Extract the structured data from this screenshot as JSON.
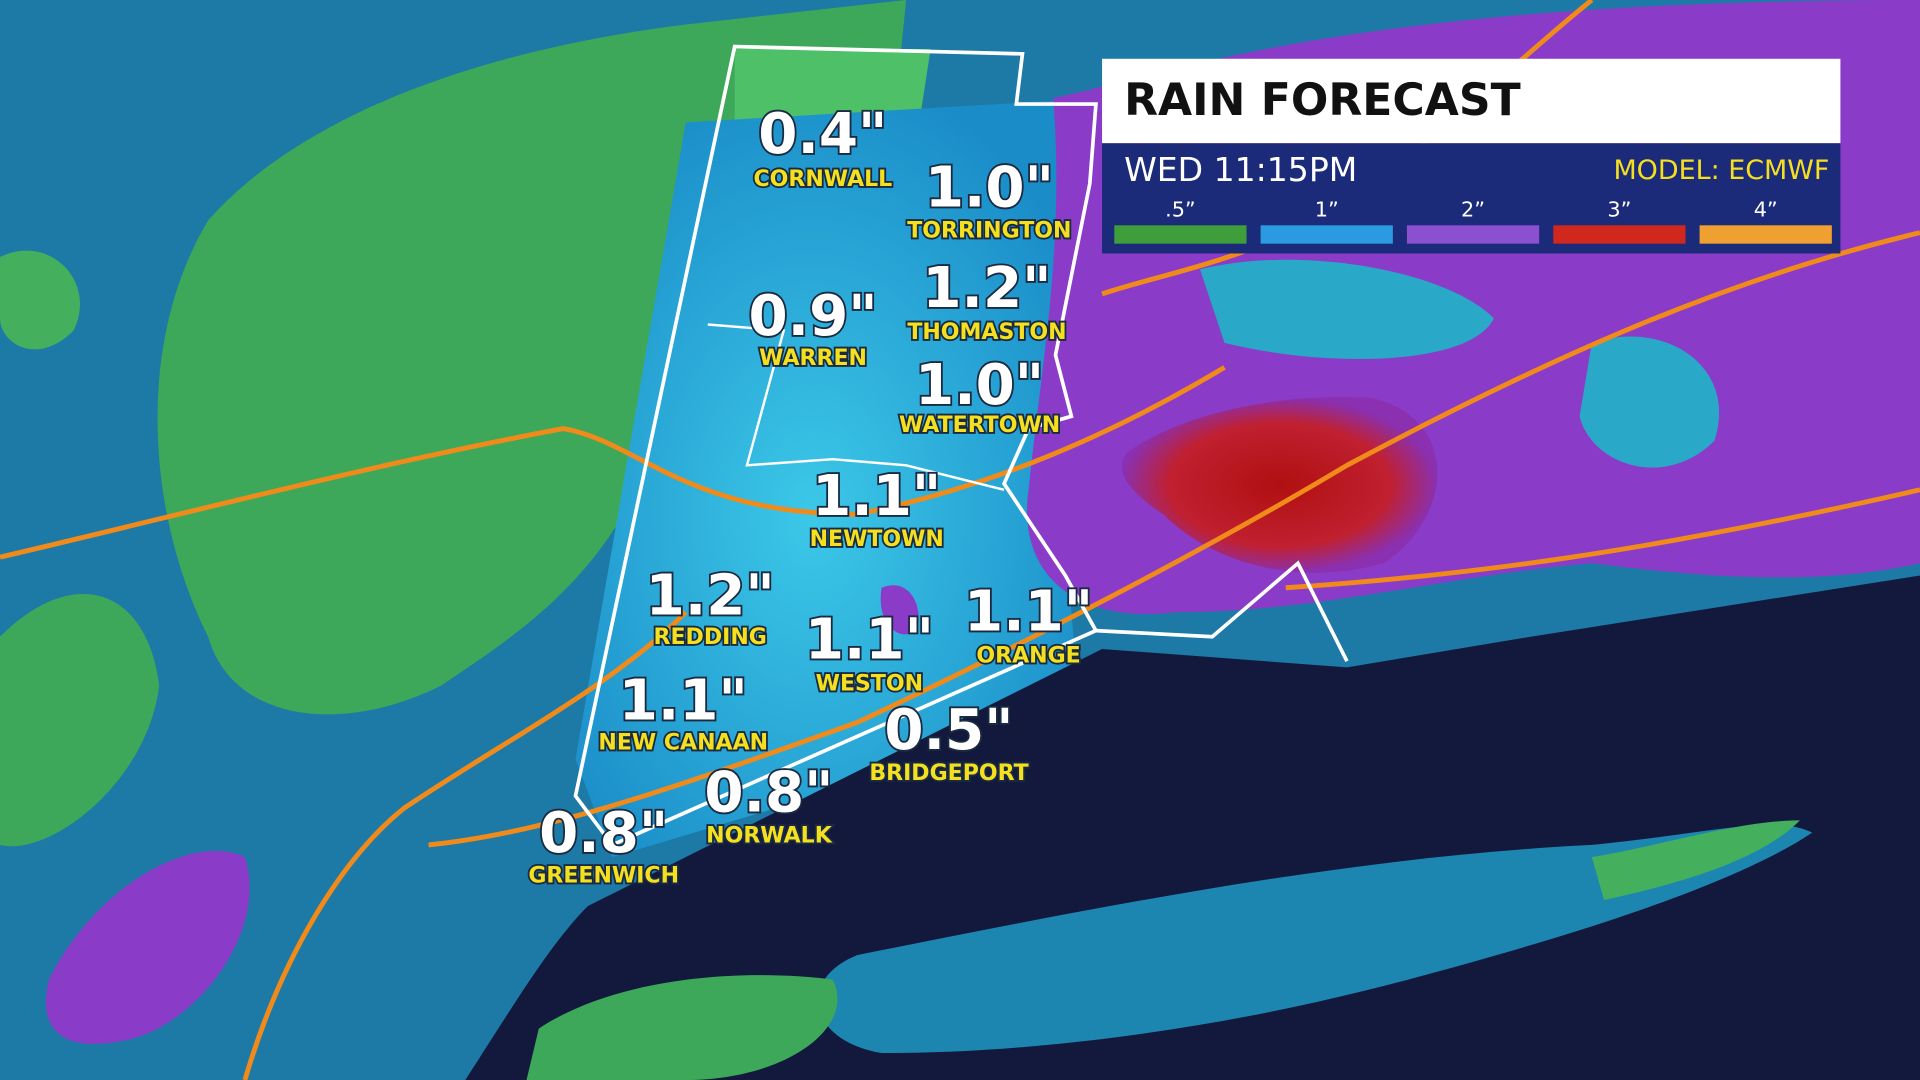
{
  "header": {
    "title": "RAIN FORECAST",
    "time": "WED 11:15PM",
    "model": "MODEL: ECMWF"
  },
  "legend": [
    {
      "label": ".5”",
      "color": "#3f9e3c"
    },
    {
      "label": "1”",
      "color": "#2a9be0"
    },
    {
      "label": "2”",
      "color": "#8a50d0"
    },
    {
      "label": "3”",
      "color": "#d0281c"
    },
    {
      "label": "4”",
      "color": "#f0a030"
    }
  ],
  "cities": [
    {
      "name": "CORNWALL",
      "amount": "0.4\""
    },
    {
      "name": "TORRINGTON",
      "amount": "1.0\""
    },
    {
      "name": "WARREN",
      "amount": "0.9\""
    },
    {
      "name": "THOMASTON",
      "amount": "1.2\""
    },
    {
      "name": "WATERTOWN",
      "amount": "1.0\""
    },
    {
      "name": "NEWTOWN",
      "amount": "1.1\""
    },
    {
      "name": "REDDING",
      "amount": "1.2\""
    },
    {
      "name": "WESTON",
      "amount": "1.1\""
    },
    {
      "name": "ORANGE",
      "amount": "1.1\""
    },
    {
      "name": "NEW CANAAN",
      "amount": "1.1\""
    },
    {
      "name": "BRIDGEPORT",
      "amount": "0.5\""
    },
    {
      "name": "NORWALK",
      "amount": "0.8\""
    },
    {
      "name": "GREENWICH",
      "amount": "0.8\""
    }
  ]
}
